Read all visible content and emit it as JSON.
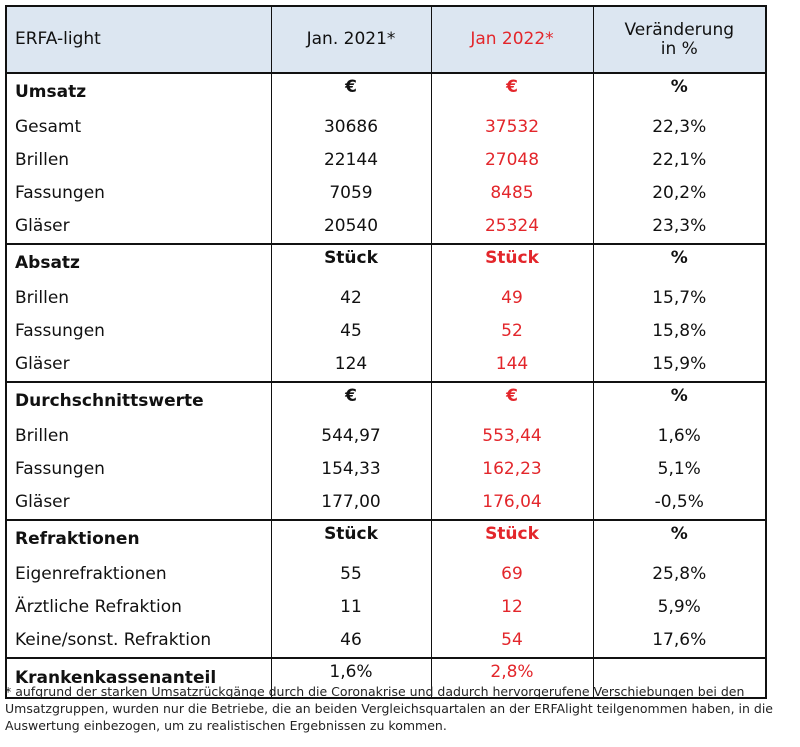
{
  "table": {
    "header": [
      "ERFA-light",
      "Jan. 2021*",
      "Jan 2022*",
      "Veränderung\nin %"
    ],
    "sections": [
      {
        "label": "Umsatz",
        "units": [
          "€",
          "€",
          "%"
        ],
        "rows": [
          [
            "Gesamt",
            "30686",
            "37532",
            "22,3%"
          ],
          [
            "Brillen",
            "22144",
            "27048",
            "22,1%"
          ],
          [
            "Fassungen",
            "7059",
            "8485",
            "20,2%"
          ],
          [
            "Gläser",
            "20540",
            "25324",
            "23,3%"
          ]
        ]
      },
      {
        "label": "Absatz",
        "units": [
          "Stück",
          "Stück",
          "%"
        ],
        "rows": [
          [
            "Brillen",
            "42",
            "49",
            "15,7%"
          ],
          [
            "Fassungen",
            "45",
            "52",
            "15,8%"
          ],
          [
            "Gläser",
            "124",
            "144",
            "15,9%"
          ]
        ]
      },
      {
        "label": "Durchschnittswerte",
        "units": [
          "€",
          "€",
          "%"
        ],
        "rows": [
          [
            "Brillen",
            "544,97",
            "553,44",
            "1,6%"
          ],
          [
            "Fassungen",
            "154,33",
            "162,23",
            "5,1%"
          ],
          [
            "Gläser",
            "177,00",
            "176,04",
            "-0,5%"
          ]
        ]
      },
      {
        "label": "Refraktionen",
        "units": [
          "Stück",
          "Stück",
          "%"
        ],
        "rows": [
          [
            "Eigenrefraktionen",
            "55",
            "69",
            "25,8%"
          ],
          [
            "Ärztliche Refraktion",
            "11",
            "12",
            "5,9%"
          ],
          [
            "Keine/sonst. Refraktion",
            "46",
            "54",
            "17,6%"
          ]
        ]
      }
    ],
    "footer_row": [
      "Krankenkassenanteil",
      "1,6%",
      "2,8%"
    ]
  },
  "footnote": "* aufgrund der starken Umsatzrückgänge durch die Coronakrise und dadurch hervorgerufene Verschiebungen bei den Umsatzgruppen, wurden nur die Betriebe, die an beiden Vergleichsquartalen an der ERFAlight teilgenommen haben, in die Auswertung einbezogen, um zu realistischen Ergebnissen zu kommen."
}
